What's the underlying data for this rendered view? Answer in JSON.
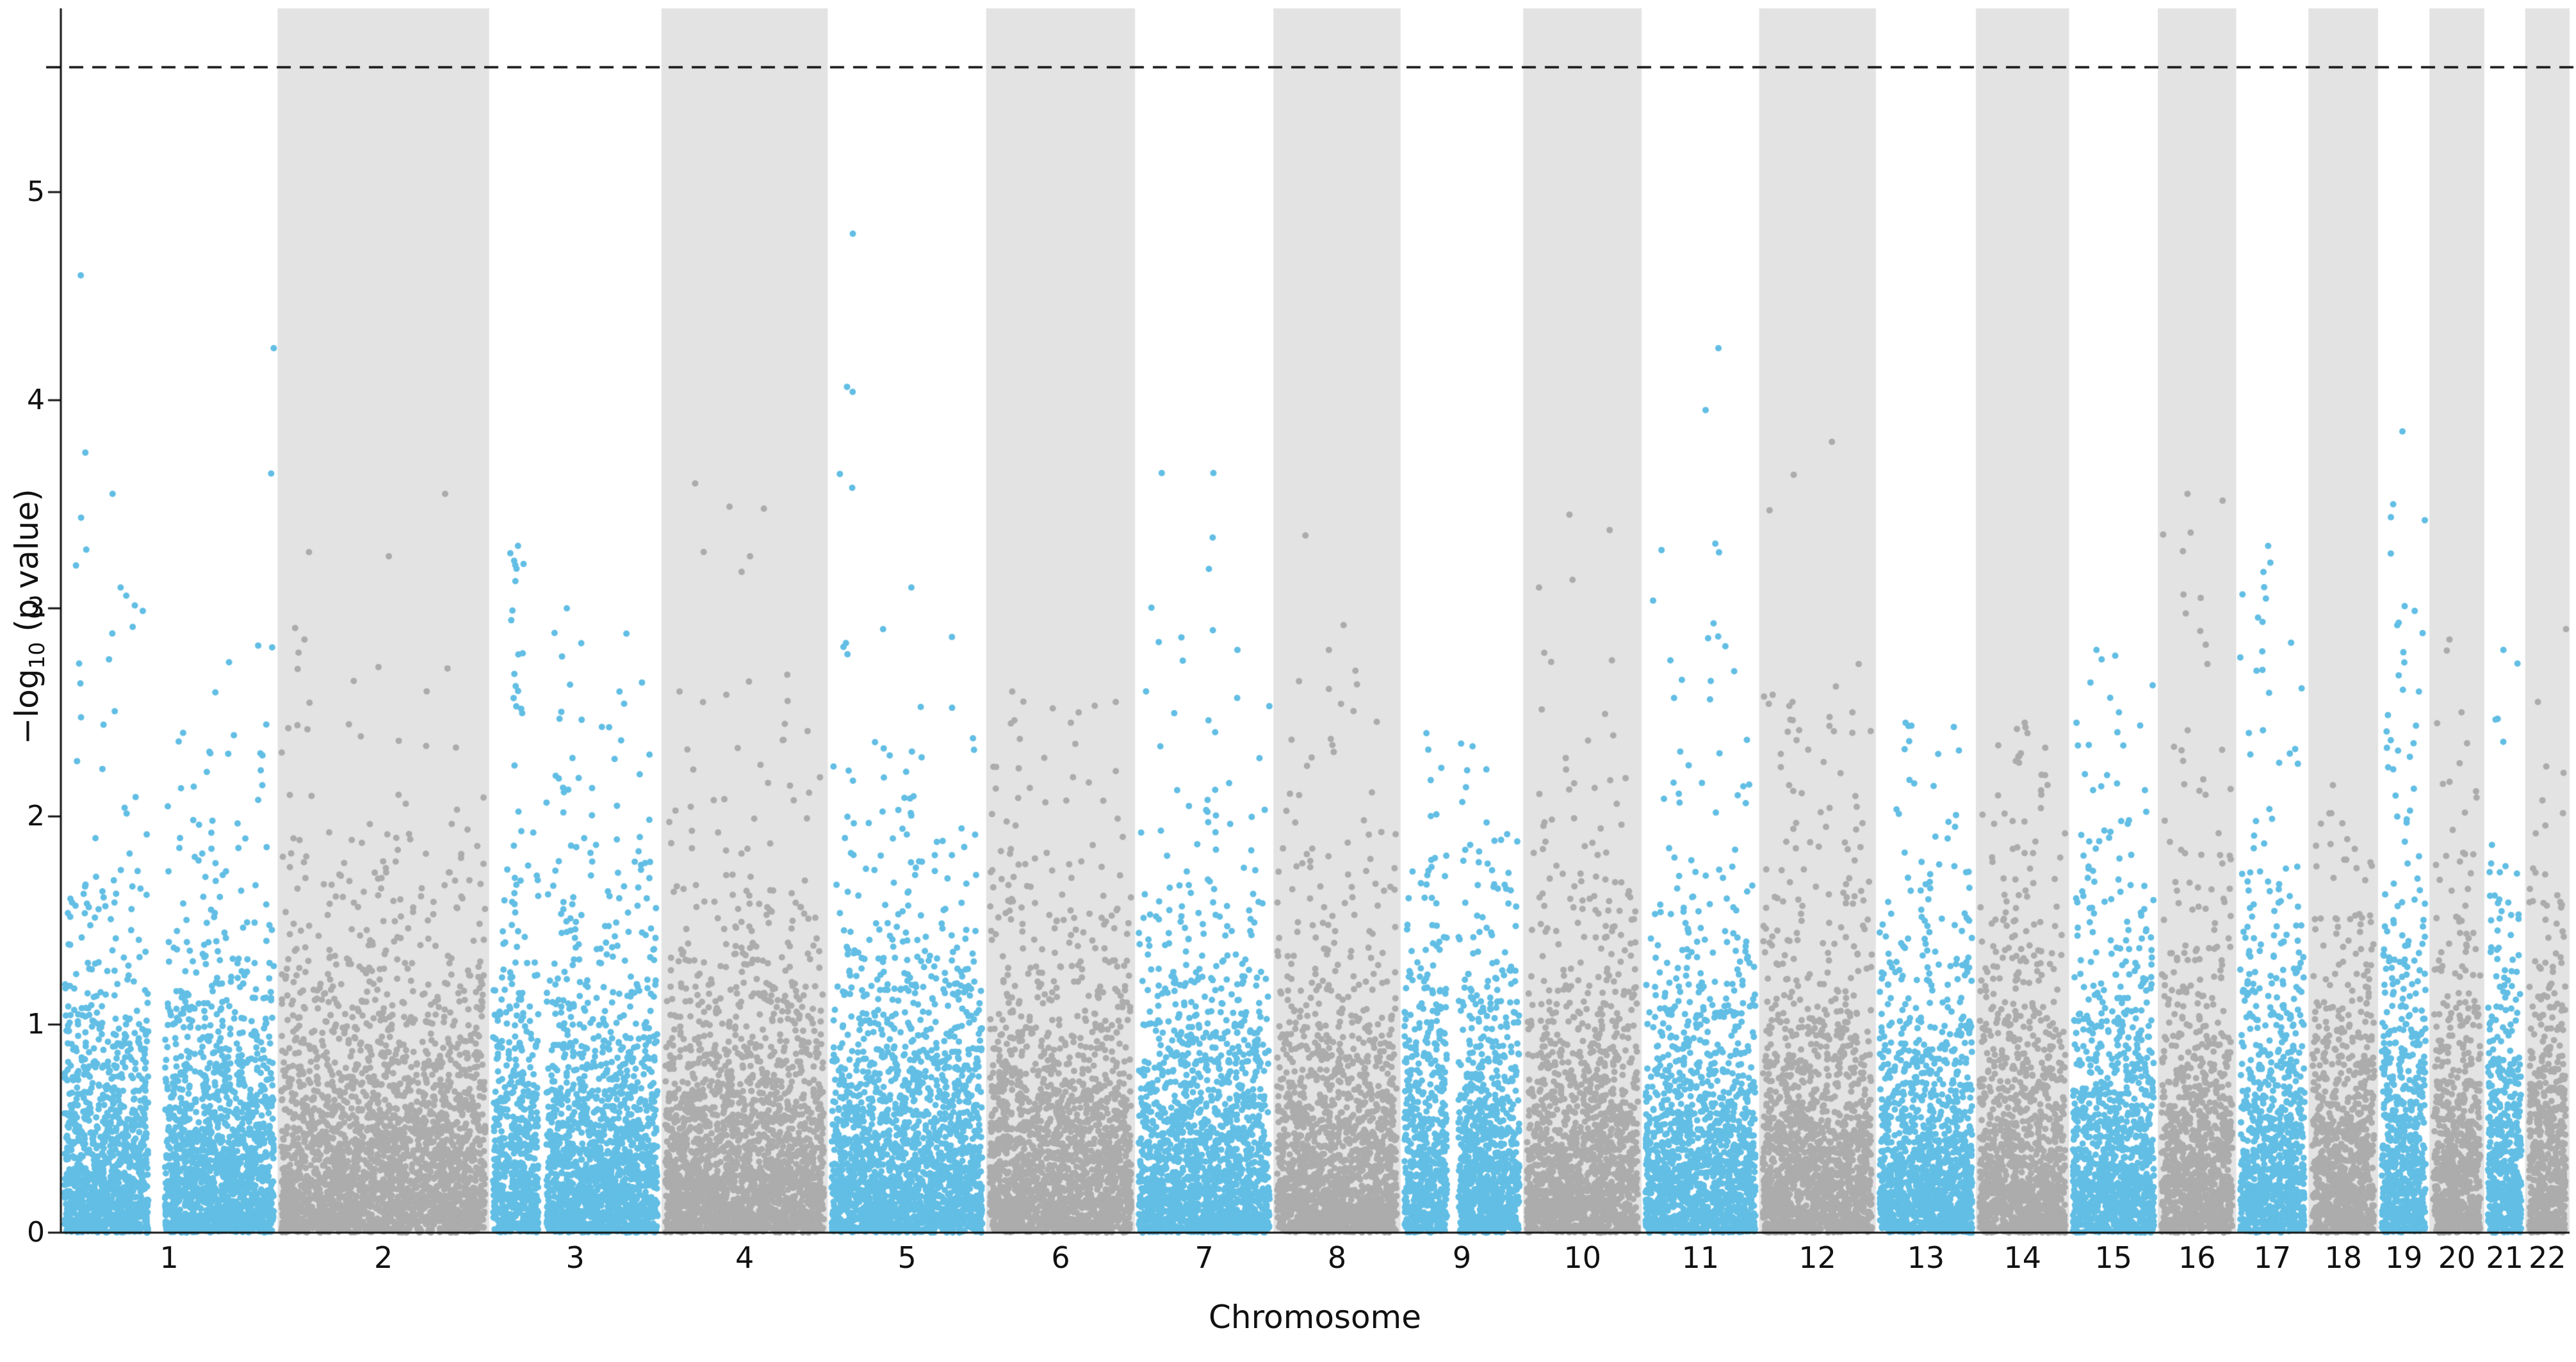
{
  "figure": {
    "kind": "manhattan-plot",
    "background": "#FFFFFF"
  },
  "chart_data": {
    "type": "scatter",
    "variant": "manhattan",
    "title": "",
    "xlabel": "Chromosome",
    "ylabel": "−log10 (p value)",
    "ylabel_parts": {
      "prefix": "−log",
      "sub": "10",
      "suffix": " (p value)"
    },
    "ylim": [
      0,
      5.88
    ],
    "yticks": [
      "0",
      "1",
      "2",
      "3",
      "4",
      "5"
    ],
    "grid": false,
    "legend": "none",
    "threshold_line": {
      "y": 5.6,
      "style": "dashed",
      "color": "#111111"
    },
    "colors": {
      "odd_points": "#62BEE4",
      "even_points": "#ACACAC",
      "band": "#E3E3E3",
      "background": "#FFFFFF",
      "axis": "#111111"
    },
    "chromosomes": [
      {
        "label": "1",
        "size_mb": 249,
        "color": "blue",
        "band_shaded": false,
        "n_points": 2739,
        "max": 4.6,
        "gaps": [
          {
            "x": 0.44,
            "w": 0.08
          }
        ],
        "peaks": [
          {
            "x": 0.1,
            "top": 4.6,
            "n": 7
          },
          {
            "x": 0.22,
            "top": 3.55,
            "n": 6
          },
          {
            "x": 0.3,
            "top": 3.1,
            "n": 8
          },
          {
            "x": 0.95,
            "top": 4.25,
            "n": 2
          }
        ]
      },
      {
        "label": "2",
        "size_mb": 243,
        "color": "gray",
        "band_shaded": true,
        "n_points": 2673,
        "max": 3.55,
        "peaks": [
          {
            "x": 0.12,
            "top": 2.85,
            "n": 4
          },
          {
            "x": 0.5,
            "top": 3.25,
            "n": 4
          },
          {
            "x": 0.82,
            "top": 3.55,
            "n": 2
          }
        ]
      },
      {
        "label": "3",
        "size_mb": 198,
        "color": "blue",
        "band_shaded": false,
        "n_points": 2178,
        "max": 3.3,
        "gaps": [
          {
            "x": 0.3,
            "w": 0.05
          }
        ],
        "peaks": [
          {
            "x": 0.16,
            "top": 3.3,
            "n": 26
          },
          {
            "x": 0.45,
            "top": 3.0,
            "n": 8
          },
          {
            "x": 0.75,
            "top": 2.6,
            "n": 4
          }
        ]
      },
      {
        "label": "4",
        "size_mb": 191,
        "color": "gray",
        "band_shaded": true,
        "n_points": 2101,
        "max": 3.6,
        "peaks": [
          {
            "x": 0.22,
            "top": 3.6,
            "n": 3
          },
          {
            "x": 0.5,
            "top": 3.25,
            "n": 3
          },
          {
            "x": 0.12,
            "top": 2.6,
            "n": 4
          }
        ]
      },
      {
        "label": "5",
        "size_mb": 182,
        "color": "blue",
        "band_shaded": false,
        "n_points": 2002,
        "max": 4.8,
        "peaks": [
          {
            "x": 0.12,
            "top": 4.8,
            "n": 10
          },
          {
            "x": 0.35,
            "top": 2.9,
            "n": 5
          },
          {
            "x": 0.55,
            "top": 3.1,
            "n": 4
          }
        ]
      },
      {
        "label": "6",
        "size_mb": 171,
        "color": "gray",
        "band_shaded": true,
        "n_points": 1881,
        "max": 2.6,
        "peaks": [
          {
            "x": 0.18,
            "top": 2.6,
            "n": 5
          },
          {
            "x": 0.55,
            "top": 2.45,
            "n": 4
          },
          {
            "x": 0.85,
            "top": 2.55,
            "n": 3
          }
        ]
      },
      {
        "label": "7",
        "size_mb": 159,
        "color": "blue",
        "band_shaded": false,
        "n_points": 1749,
        "max": 3.65,
        "peaks": [
          {
            "x": 0.22,
            "top": 3.65,
            "n": 4
          },
          {
            "x": 0.55,
            "top": 3.65,
            "n": 9
          },
          {
            "x": 0.75,
            "top": 2.8,
            "n": 3
          }
        ]
      },
      {
        "label": "8",
        "size_mb": 146,
        "color": "gray",
        "band_shaded": true,
        "n_points": 1606,
        "max": 3.35,
        "peaks": [
          {
            "x": 0.22,
            "top": 3.35,
            "n": 3
          },
          {
            "x": 0.45,
            "top": 2.8,
            "n": 5
          },
          {
            "x": 0.65,
            "top": 2.7,
            "n": 3
          }
        ]
      },
      {
        "label": "9",
        "size_mb": 141,
        "color": "blue",
        "band_shaded": false,
        "n_points": 1551,
        "max": 2.4,
        "gaps": [
          {
            "x": 0.42,
            "w": 0.1
          }
        ],
        "peaks": [
          {
            "x": 0.25,
            "top": 2.4,
            "n": 6
          },
          {
            "x": 0.55,
            "top": 2.35,
            "n": 4
          }
        ]
      },
      {
        "label": "10",
        "size_mb": 136,
        "color": "gray",
        "band_shaded": true,
        "n_points": 1496,
        "max": 3.45,
        "peaks": [
          {
            "x": 0.18,
            "top": 3.1,
            "n": 6
          },
          {
            "x": 0.4,
            "top": 3.45,
            "n": 2
          },
          {
            "x": 0.75,
            "top": 2.75,
            "n": 3
          }
        ]
      },
      {
        "label": "11",
        "size_mb": 135,
        "color": "blue",
        "band_shaded": false,
        "n_points": 1485,
        "max": 4.25,
        "peaks": [
          {
            "x": 0.6,
            "top": 4.25,
            "n": 8
          },
          {
            "x": 0.3,
            "top": 2.75,
            "n": 4
          }
        ]
      },
      {
        "label": "12",
        "size_mb": 134,
        "color": "gray",
        "band_shaded": true,
        "n_points": 1474,
        "max": 3.8,
        "peaks": [
          {
            "x": 0.3,
            "top": 2.55,
            "n": 8
          },
          {
            "x": 0.6,
            "top": 3.8,
            "n": 2
          },
          {
            "x": 0.75,
            "top": 2.5,
            "n": 4
          }
        ]
      },
      {
        "label": "13",
        "size_mb": 115,
        "color": "blue",
        "band_shaded": false,
        "n_points": 1265,
        "max": 2.45,
        "peaks": [
          {
            "x": 0.35,
            "top": 2.45,
            "n": 5
          },
          {
            "x": 0.6,
            "top": 2.3,
            "n": 4
          }
        ]
      },
      {
        "label": "14",
        "size_mb": 107,
        "color": "gray",
        "band_shaded": true,
        "n_points": 1177,
        "max": 2.45,
        "peaks": [
          {
            "x": 0.45,
            "top": 2.45,
            "n": 8
          },
          {
            "x": 0.7,
            "top": 2.2,
            "n": 4
          }
        ]
      },
      {
        "label": "15",
        "size_mb": 102,
        "color": "blue",
        "band_shaded": false,
        "n_points": 1122,
        "max": 2.8,
        "peaks": [
          {
            "x": 0.3,
            "top": 2.8,
            "n": 6
          },
          {
            "x": 0.6,
            "top": 2.5,
            "n": 4
          }
        ]
      },
      {
        "label": "16",
        "size_mb": 90,
        "color": "gray",
        "band_shaded": true,
        "n_points": 990,
        "max": 3.55,
        "peaks": [
          {
            "x": 0.35,
            "top": 3.55,
            "n": 11
          },
          {
            "x": 0.6,
            "top": 3.05,
            "n": 5
          }
        ]
      },
      {
        "label": "17",
        "size_mb": 83,
        "color": "blue",
        "band_shaded": false,
        "n_points": 913,
        "max": 3.3,
        "peaks": [
          {
            "x": 0.45,
            "top": 3.3,
            "n": 12
          },
          {
            "x": 0.2,
            "top": 2.7,
            "n": 4
          }
        ]
      },
      {
        "label": "18",
        "size_mb": 80,
        "color": "gray",
        "band_shaded": true,
        "n_points": 880,
        "max": 2.15,
        "peaks": [
          {
            "x": 0.4,
            "top": 2.15,
            "n": 4
          }
        ]
      },
      {
        "label": "19",
        "size_mb": 59,
        "color": "blue",
        "band_shaded": false,
        "n_points": 649,
        "max": 3.85,
        "y_mult": 1.12,
        "peaks": [
          {
            "x": 0.3,
            "top": 3.5,
            "n": 9
          },
          {
            "x": 0.5,
            "top": 3.85,
            "n": 5
          },
          {
            "x": 0.7,
            "top": 2.6,
            "n": 4
          }
        ]
      },
      {
        "label": "20",
        "size_mb": 63,
        "color": "gray",
        "band_shaded": true,
        "n_points": 693,
        "max": 2.85,
        "peaks": [
          {
            "x": 0.3,
            "top": 2.85,
            "n": 4
          },
          {
            "x": 0.6,
            "top": 2.5,
            "n": 3
          }
        ]
      },
      {
        "label": "21",
        "size_mb": 47,
        "color": "blue",
        "band_shaded": false,
        "n_points": 517,
        "max": 2.8,
        "peaks": [
          {
            "x": 0.4,
            "top": 2.8,
            "n": 4
          }
        ]
      },
      {
        "label": "22",
        "size_mb": 51,
        "color": "gray",
        "band_shaded": true,
        "n_points": 561,
        "max": 2.9,
        "peaks": [
          {
            "x": 0.4,
            "top": 2.55,
            "n": 5
          },
          {
            "x": 0.8,
            "top": 2.9,
            "n": 3
          }
        ]
      }
    ]
  }
}
